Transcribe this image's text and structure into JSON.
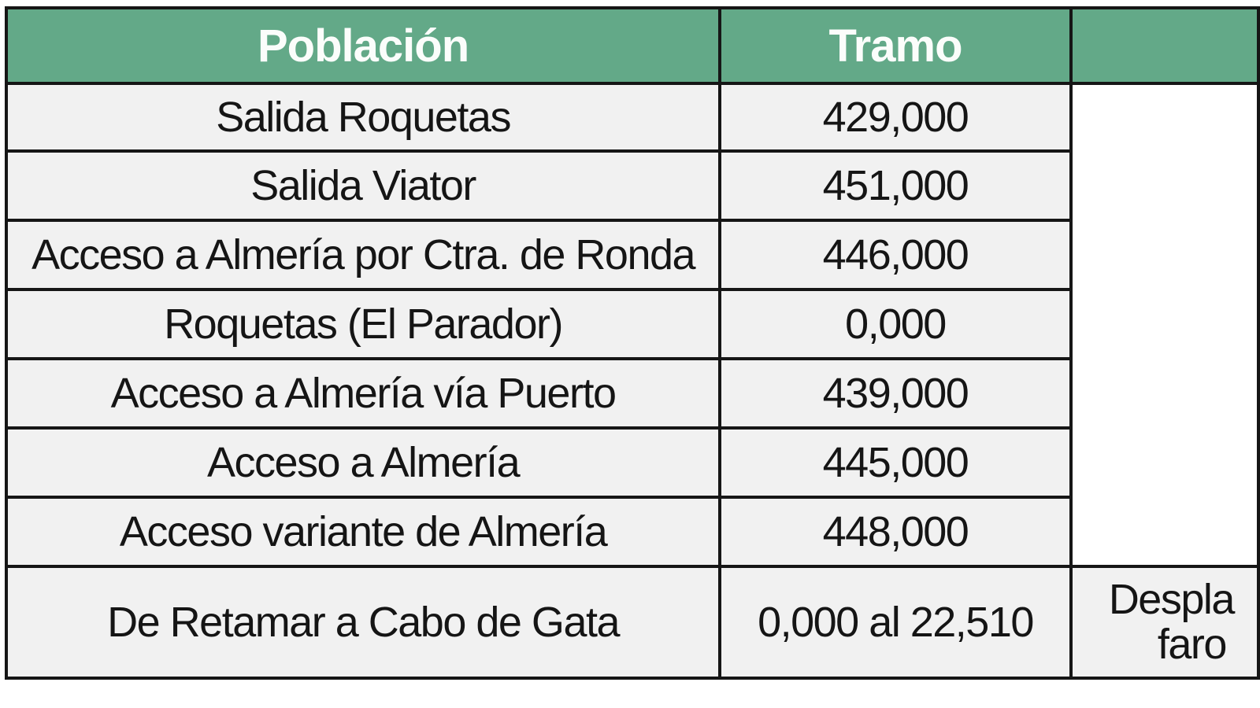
{
  "table": {
    "headers": [
      "Población",
      "Tramo",
      ""
    ],
    "rows": [
      {
        "poblacion": "Salida Roquetas",
        "tramo": "429,000"
      },
      {
        "poblacion": "Salida Viator",
        "tramo": "451,000"
      },
      {
        "poblacion": "Acceso a Almería por Ctra. de Ronda",
        "tramo": "446,000"
      },
      {
        "poblacion": "Roquetas (El Parador)",
        "tramo": "0,000"
      },
      {
        "poblacion": "Acceso a Almería vía Puerto",
        "tramo": "439,000"
      },
      {
        "poblacion": "Acceso a Almería",
        "tramo": "445,000"
      },
      {
        "poblacion": "Acceso variante de Almería",
        "tramo": "448,000"
      },
      {
        "poblacion": "De Retamar a Cabo de Gata",
        "tramo": "0,000 al 22,510",
        "third_line1": "Despla",
        "third_line2": "faro"
      }
    ]
  },
  "colors": {
    "header_bg": "#63a988",
    "header_text": "#fbfdfb",
    "cell_bg": "#f1f1f1",
    "border": "#161616"
  }
}
